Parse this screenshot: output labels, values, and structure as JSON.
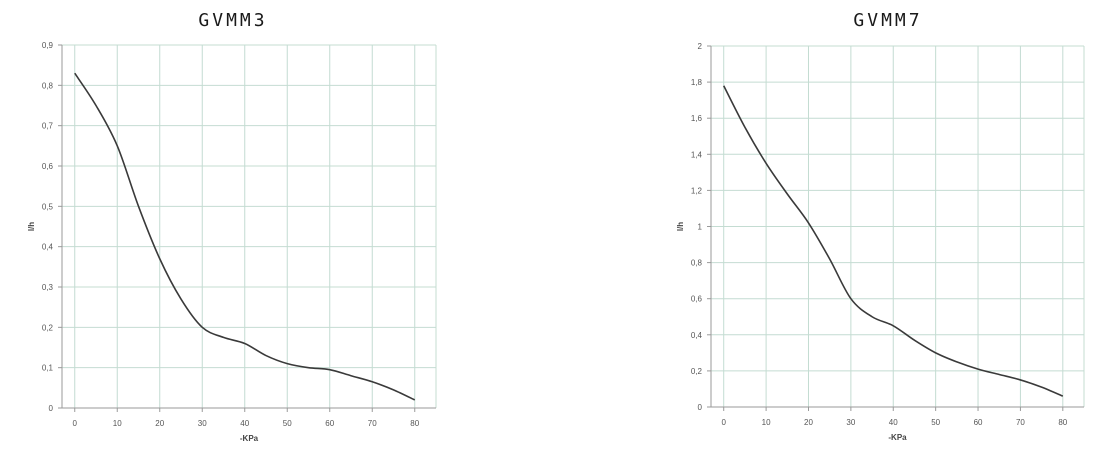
{
  "chart_data": [
    {
      "type": "line",
      "title": "GVMM3",
      "xlabel": "-KPa",
      "ylabel": "l/h",
      "x_ticks": [
        "0",
        "10",
        "20",
        "30",
        "40",
        "50",
        "60",
        "70",
        "80"
      ],
      "y_ticks": [
        "0",
        "0,1",
        "0,2",
        "0,3",
        "0,4",
        "0,5",
        "0,6",
        "0,7",
        "0,8",
        "0,9"
      ],
      "xlim": [
        -3,
        85
      ],
      "ylim": [
        0,
        0.9
      ],
      "grid": true,
      "series": [
        {
          "color": "#3a3a3a",
          "x": [
            0,
            5,
            10,
            15,
            20,
            25,
            30,
            35,
            40,
            45,
            50,
            55,
            60,
            65,
            70,
            75,
            80
          ],
          "y": [
            0.83,
            0.75,
            0.65,
            0.5,
            0.37,
            0.27,
            0.2,
            0.175,
            0.16,
            0.13,
            0.11,
            0.1,
            0.095,
            0.08,
            0.065,
            0.045,
            0.02
          ]
        }
      ]
    },
    {
      "type": "line",
      "title": "GVMM7",
      "xlabel": "-KPa",
      "ylabel": "l/h",
      "x_ticks": [
        "0",
        "10",
        "20",
        "30",
        "40",
        "50",
        "60",
        "70",
        "80"
      ],
      "y_ticks": [
        "0",
        "0,2",
        "0,4",
        "0,6",
        "0,8",
        "1",
        "1,2",
        "1,4",
        "1,6",
        "1,8",
        "2"
      ],
      "xlim": [
        -3,
        85
      ],
      "ylim": [
        0,
        2
      ],
      "grid": true,
      "series": [
        {
          "color": "#3a3a3a",
          "x": [
            0,
            5,
            10,
            15,
            20,
            25,
            30,
            35,
            40,
            45,
            50,
            55,
            60,
            65,
            70,
            75,
            80
          ],
          "y": [
            1.78,
            1.55,
            1.35,
            1.18,
            1.02,
            0.82,
            0.6,
            0.5,
            0.45,
            0.37,
            0.3,
            0.25,
            0.21,
            0.18,
            0.15,
            0.11,
            0.06
          ]
        }
      ]
    }
  ]
}
